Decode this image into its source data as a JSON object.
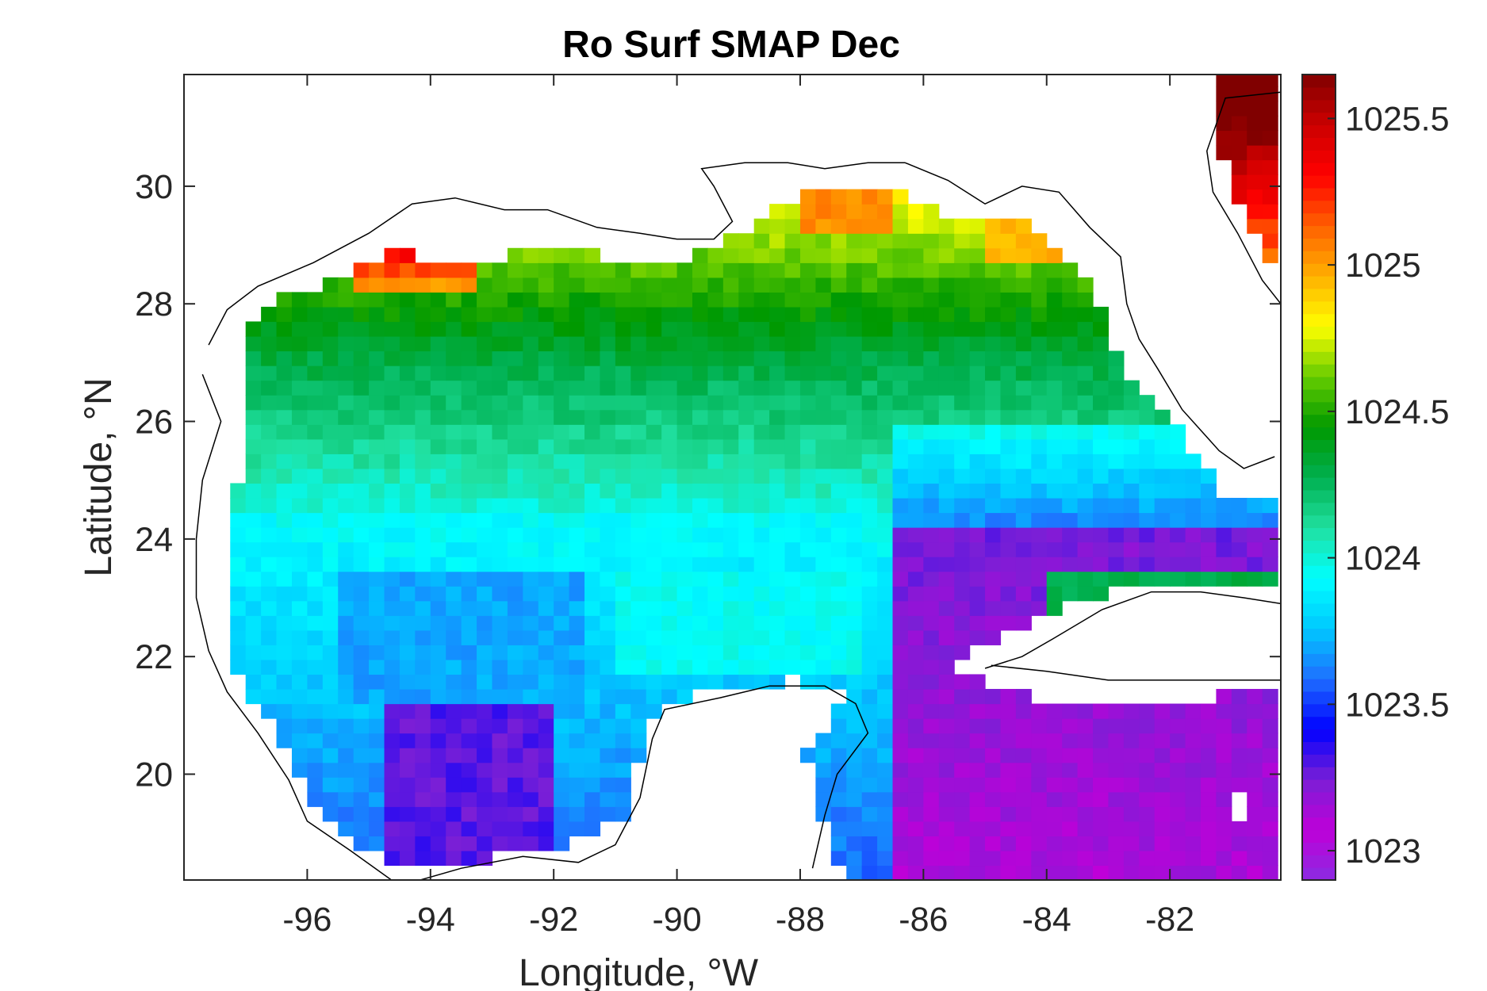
{
  "chart_data": {
    "type": "heatmap",
    "title": "Ro Surf SMAP Dec",
    "xlabel": "Longitude, °W",
    "ylabel": "Latitude, °N",
    "xlim": [
      -98,
      -80.2
    ],
    "ylim": [
      18.2,
      31.9
    ],
    "x_ticks": [
      -96,
      -94,
      -92,
      -90,
      -88,
      -86,
      -84,
      -82
    ],
    "x_tick_labels": [
      "-96",
      "-94",
      "-92",
      "-90",
      "-88",
      "-86",
      "-84",
      "-82"
    ],
    "y_ticks": [
      20,
      22,
      24,
      26,
      28,
      30
    ],
    "y_tick_labels": [
      "20",
      "22",
      "24",
      "26",
      "28",
      "30"
    ],
    "colorbar": {
      "range": [
        1022.9,
        1025.65
      ],
      "ticks": [
        1023,
        1023.5,
        1024,
        1024.5,
        1025,
        1025.5
      ],
      "tick_labels": [
        "1023",
        "1023.5",
        "1024",
        "1024.5",
        "1025",
        "1025.5"
      ],
      "colormap": [
        "#8a2be2",
        "#bf00d8",
        "#7a1fd6",
        "#0000ff",
        "#1f6fff",
        "#00c8ff",
        "#00ffff",
        "#20e0a0",
        "#00b050",
        "#009900",
        "#66cc00",
        "#ffff00",
        "#ffb000",
        "#ff6000",
        "#ff0000",
        "#cc0000",
        "#800000"
      ]
    },
    "grid": false,
    "notes_visible": "Gridded sea surface density field over the Gulf of Mexico with coastline outlines; land areas white."
  }
}
